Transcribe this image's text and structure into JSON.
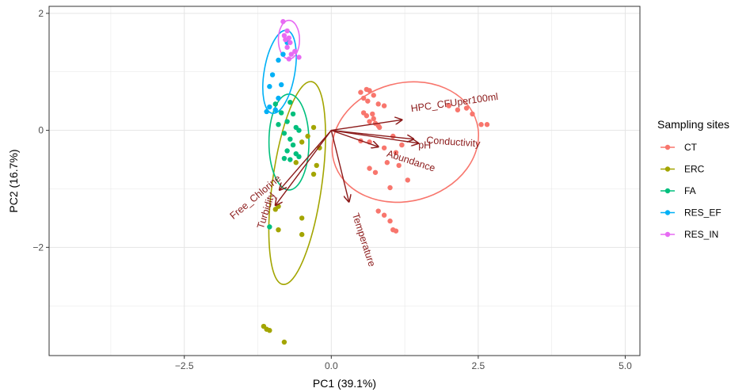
{
  "chart_data": {
    "type": "scatter",
    "xlabel": "PC1 (39.1%)",
    "ylabel": "PC2 (16.7%)",
    "xlim": [
      -4.8,
      5.25
    ],
    "ylim": [
      -3.85,
      2.12
    ],
    "x_ticks": [
      -2.5,
      0.0,
      2.5,
      5.0
    ],
    "x_tick_labels": [
      "−2.5",
      "0.0",
      "2.5",
      "5.0"
    ],
    "y_ticks": [
      -2,
      0,
      2
    ],
    "y_tick_labels": [
      "−2",
      "0",
      "2"
    ],
    "grid": true,
    "legend": {
      "title": "Sampling sites",
      "position": "right"
    },
    "series": [
      {
        "name": "CT",
        "color": "#F8766D",
        "points": [
          [
            0.5,
            0.65
          ],
          [
            0.6,
            0.7
          ],
          [
            0.65,
            0.68
          ],
          [
            0.72,
            0.6
          ],
          [
            0.55,
            0.55
          ],
          [
            0.62,
            0.5
          ],
          [
            0.8,
            0.45
          ],
          [
            0.9,
            0.42
          ],
          [
            0.55,
            0.3
          ],
          [
            0.7,
            0.28
          ],
          [
            0.6,
            0.25
          ],
          [
            0.72,
            0.2
          ],
          [
            0.65,
            0.15
          ],
          [
            0.75,
            0.12
          ],
          [
            0.8,
            0.08
          ],
          [
            0.82,
            0.05
          ],
          [
            0.5,
            -0.18
          ],
          [
            0.65,
            -0.2
          ],
          [
            1.05,
            -0.1
          ],
          [
            1.2,
            -0.25
          ],
          [
            0.9,
            -0.3
          ],
          [
            1.1,
            -0.38
          ],
          [
            0.95,
            -0.55
          ],
          [
            1.15,
            -0.6
          ],
          [
            0.65,
            -0.65
          ],
          [
            0.75,
            -0.72
          ],
          [
            1.3,
            -0.85
          ],
          [
            1.0,
            -0.98
          ],
          [
            0.8,
            -1.38
          ],
          [
            0.9,
            -1.45
          ],
          [
            1.0,
            -1.55
          ],
          [
            1.05,
            -1.7
          ],
          [
            1.1,
            -1.72
          ],
          [
            2.0,
            0.42
          ],
          [
            2.15,
            0.35
          ],
          [
            2.3,
            0.38
          ],
          [
            2.4,
            0.28
          ],
          [
            2.55,
            0.1
          ],
          [
            2.65,
            0.1
          ]
        ]
      },
      {
        "name": "ERC",
        "color": "#A3A500",
        "points": [
          [
            -0.3,
            0.05
          ],
          [
            -0.4,
            -0.1
          ],
          [
            -0.5,
            -0.2
          ],
          [
            -0.2,
            -0.3
          ],
          [
            -0.6,
            -0.55
          ],
          [
            -0.25,
            -0.6
          ],
          [
            -0.3,
            -0.75
          ],
          [
            -0.9,
            -1.3
          ],
          [
            -0.95,
            -1.35
          ],
          [
            -0.5,
            -1.5
          ],
          [
            -0.9,
            -1.7
          ],
          [
            -0.5,
            -1.78
          ],
          [
            -1.15,
            -3.35
          ],
          [
            -1.1,
            -3.4
          ],
          [
            -1.05,
            -3.42
          ],
          [
            -0.8,
            -3.62
          ]
        ]
      },
      {
        "name": "FA",
        "color": "#00BF7D",
        "points": [
          [
            -0.95,
            0.45
          ],
          [
            -0.7,
            0.48
          ],
          [
            -0.85,
            0.3
          ],
          [
            -0.65,
            0.28
          ],
          [
            -0.75,
            0.15
          ],
          [
            -0.6,
            0.05
          ],
          [
            -0.9,
            0.1
          ],
          [
            -0.55,
            0.0
          ],
          [
            -0.8,
            -0.05
          ],
          [
            -0.7,
            -0.15
          ],
          [
            -0.65,
            -0.25
          ],
          [
            -0.75,
            -0.35
          ],
          [
            -0.6,
            -0.4
          ],
          [
            -0.55,
            -0.45
          ],
          [
            -0.8,
            -0.48
          ],
          [
            -0.7,
            -0.5
          ],
          [
            -1.05,
            -1.65
          ]
        ]
      },
      {
        "name": "RES_EF",
        "color": "#00B0F6",
        "points": [
          [
            -0.75,
            1.5
          ],
          [
            -0.82,
            1.3
          ],
          [
            -0.9,
            1.2
          ],
          [
            -1.0,
            0.95
          ],
          [
            -1.05,
            0.75
          ],
          [
            -0.85,
            0.78
          ],
          [
            -0.9,
            0.55
          ],
          [
            -1.05,
            0.4
          ],
          [
            -0.95,
            0.35
          ],
          [
            -1.1,
            0.32
          ]
        ]
      },
      {
        "name": "RES_IN",
        "color": "#E76BF3",
        "points": [
          [
            -0.82,
            1.86
          ],
          [
            -0.75,
            1.7
          ],
          [
            -0.8,
            1.62
          ],
          [
            -0.72,
            1.58
          ],
          [
            -0.78,
            1.55
          ],
          [
            -0.7,
            1.5
          ],
          [
            -0.75,
            1.42
          ],
          [
            -0.62,
            1.35
          ],
          [
            -0.68,
            1.3
          ],
          [
            -0.55,
            1.25
          ],
          [
            -0.72,
            1.22
          ]
        ]
      }
    ],
    "ellipses": [
      {
        "name": "CT",
        "color": "#F8766D",
        "cx": 1.26,
        "cy": -0.2,
        "rx": 1.26,
        "ry": 1.01,
        "angle_deg": -15
      },
      {
        "name": "ERC",
        "color": "#A3A500",
        "cx": -0.58,
        "cy": -0.9,
        "rx": 0.42,
        "ry": 1.75,
        "angle_deg": 8
      },
      {
        "name": "FA",
        "color": "#00BF7D",
        "cx": -0.72,
        "cy": -0.2,
        "rx": 0.34,
        "ry": 0.82,
        "angle_deg": 0
      },
      {
        "name": "RES_EF",
        "color": "#00B0F6",
        "cx": -0.88,
        "cy": 1.0,
        "rx": 0.26,
        "ry": 0.72,
        "angle_deg": 10
      },
      {
        "name": "RES_IN",
        "color": "#E76BF3",
        "cx": -0.72,
        "cy": 1.55,
        "rx": 0.18,
        "ry": 0.33,
        "angle_deg": 0
      }
    ],
    "loadings": [
      {
        "name": "HPC_CFUper100ml",
        "x": 1.2,
        "y": 0.18
      },
      {
        "name": "pH",
        "x": 1.4,
        "y": -0.15
      },
      {
        "name": "Conductivity",
        "x": 1.48,
        "y": -0.22
      },
      {
        "name": "Abundance",
        "x": 0.8,
        "y": -0.28
      },
      {
        "name": "Temperature",
        "x": 0.3,
        "y": -1.22
      },
      {
        "name": "Free_Chlorine",
        "x": -0.88,
        "y": -1.02
      },
      {
        "name": "Turbidity",
        "x": -0.95,
        "y": -1.28
      }
    ],
    "arrow_color": "#8B1A1A"
  }
}
